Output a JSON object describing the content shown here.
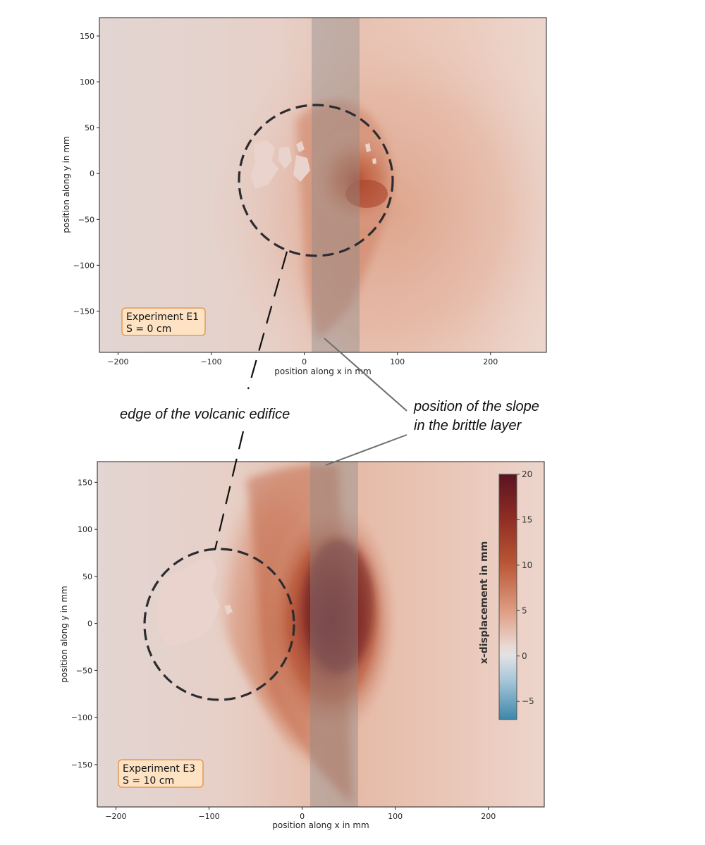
{
  "chart_data": [
    {
      "type": "heatmap",
      "panel": "E1",
      "xlabel": "position along x in mm",
      "ylabel": "position along y in mm",
      "xlim": [
        -220,
        260
      ],
      "ylim": [
        -195,
        170
      ],
      "xticks": [
        -200,
        -100,
        0,
        100,
        200
      ],
      "yticks": [
        -150,
        -100,
        -50,
        0,
        50,
        100,
        150
      ],
      "value_name": "x-displacement in mm",
      "value_range": [
        -7,
        20
      ],
      "max_displacement_approx": 13,
      "experiment_label": [
        "Experiment E1",
        "S = 0 cm"
      ],
      "edifice_circle": {
        "center": [
          13,
          -6
        ],
        "radius_x": 82,
        "radius_y": 82
      },
      "slope_band": {
        "x_range": [
          8,
          60
        ]
      }
    },
    {
      "type": "heatmap",
      "panel": "E3",
      "xlabel": "position along x in mm",
      "ylabel": "position along y in mm",
      "xlim": [
        -220,
        260
      ],
      "ylim": [
        -195,
        172
      ],
      "xticks": [
        -200,
        -100,
        0,
        100,
        200
      ],
      "yticks": [
        -150,
        -100,
        -50,
        0,
        50,
        100,
        150
      ],
      "value_name": "x-displacement in mm",
      "value_range": [
        -7,
        20
      ],
      "max_displacement_approx": 19,
      "experiment_label": [
        "Experiment E3",
        "S = 10 cm"
      ],
      "edifice_circle": {
        "center": [
          -90,
          -2
        ],
        "radius_x": 78,
        "radius_y": 80
      },
      "slope_band": {
        "x_range": [
          8,
          60
        ]
      },
      "colorbar": {
        "label": "x-displacement in mm",
        "ticks": [
          20,
          15,
          10,
          5,
          0,
          -5
        ],
        "range": [
          -7,
          20
        ]
      }
    }
  ],
  "annotations": {
    "edifice": "edge of the volcanic edifice",
    "slope_line1": "position of the slope",
    "slope_line2": "in the brittle layer"
  }
}
